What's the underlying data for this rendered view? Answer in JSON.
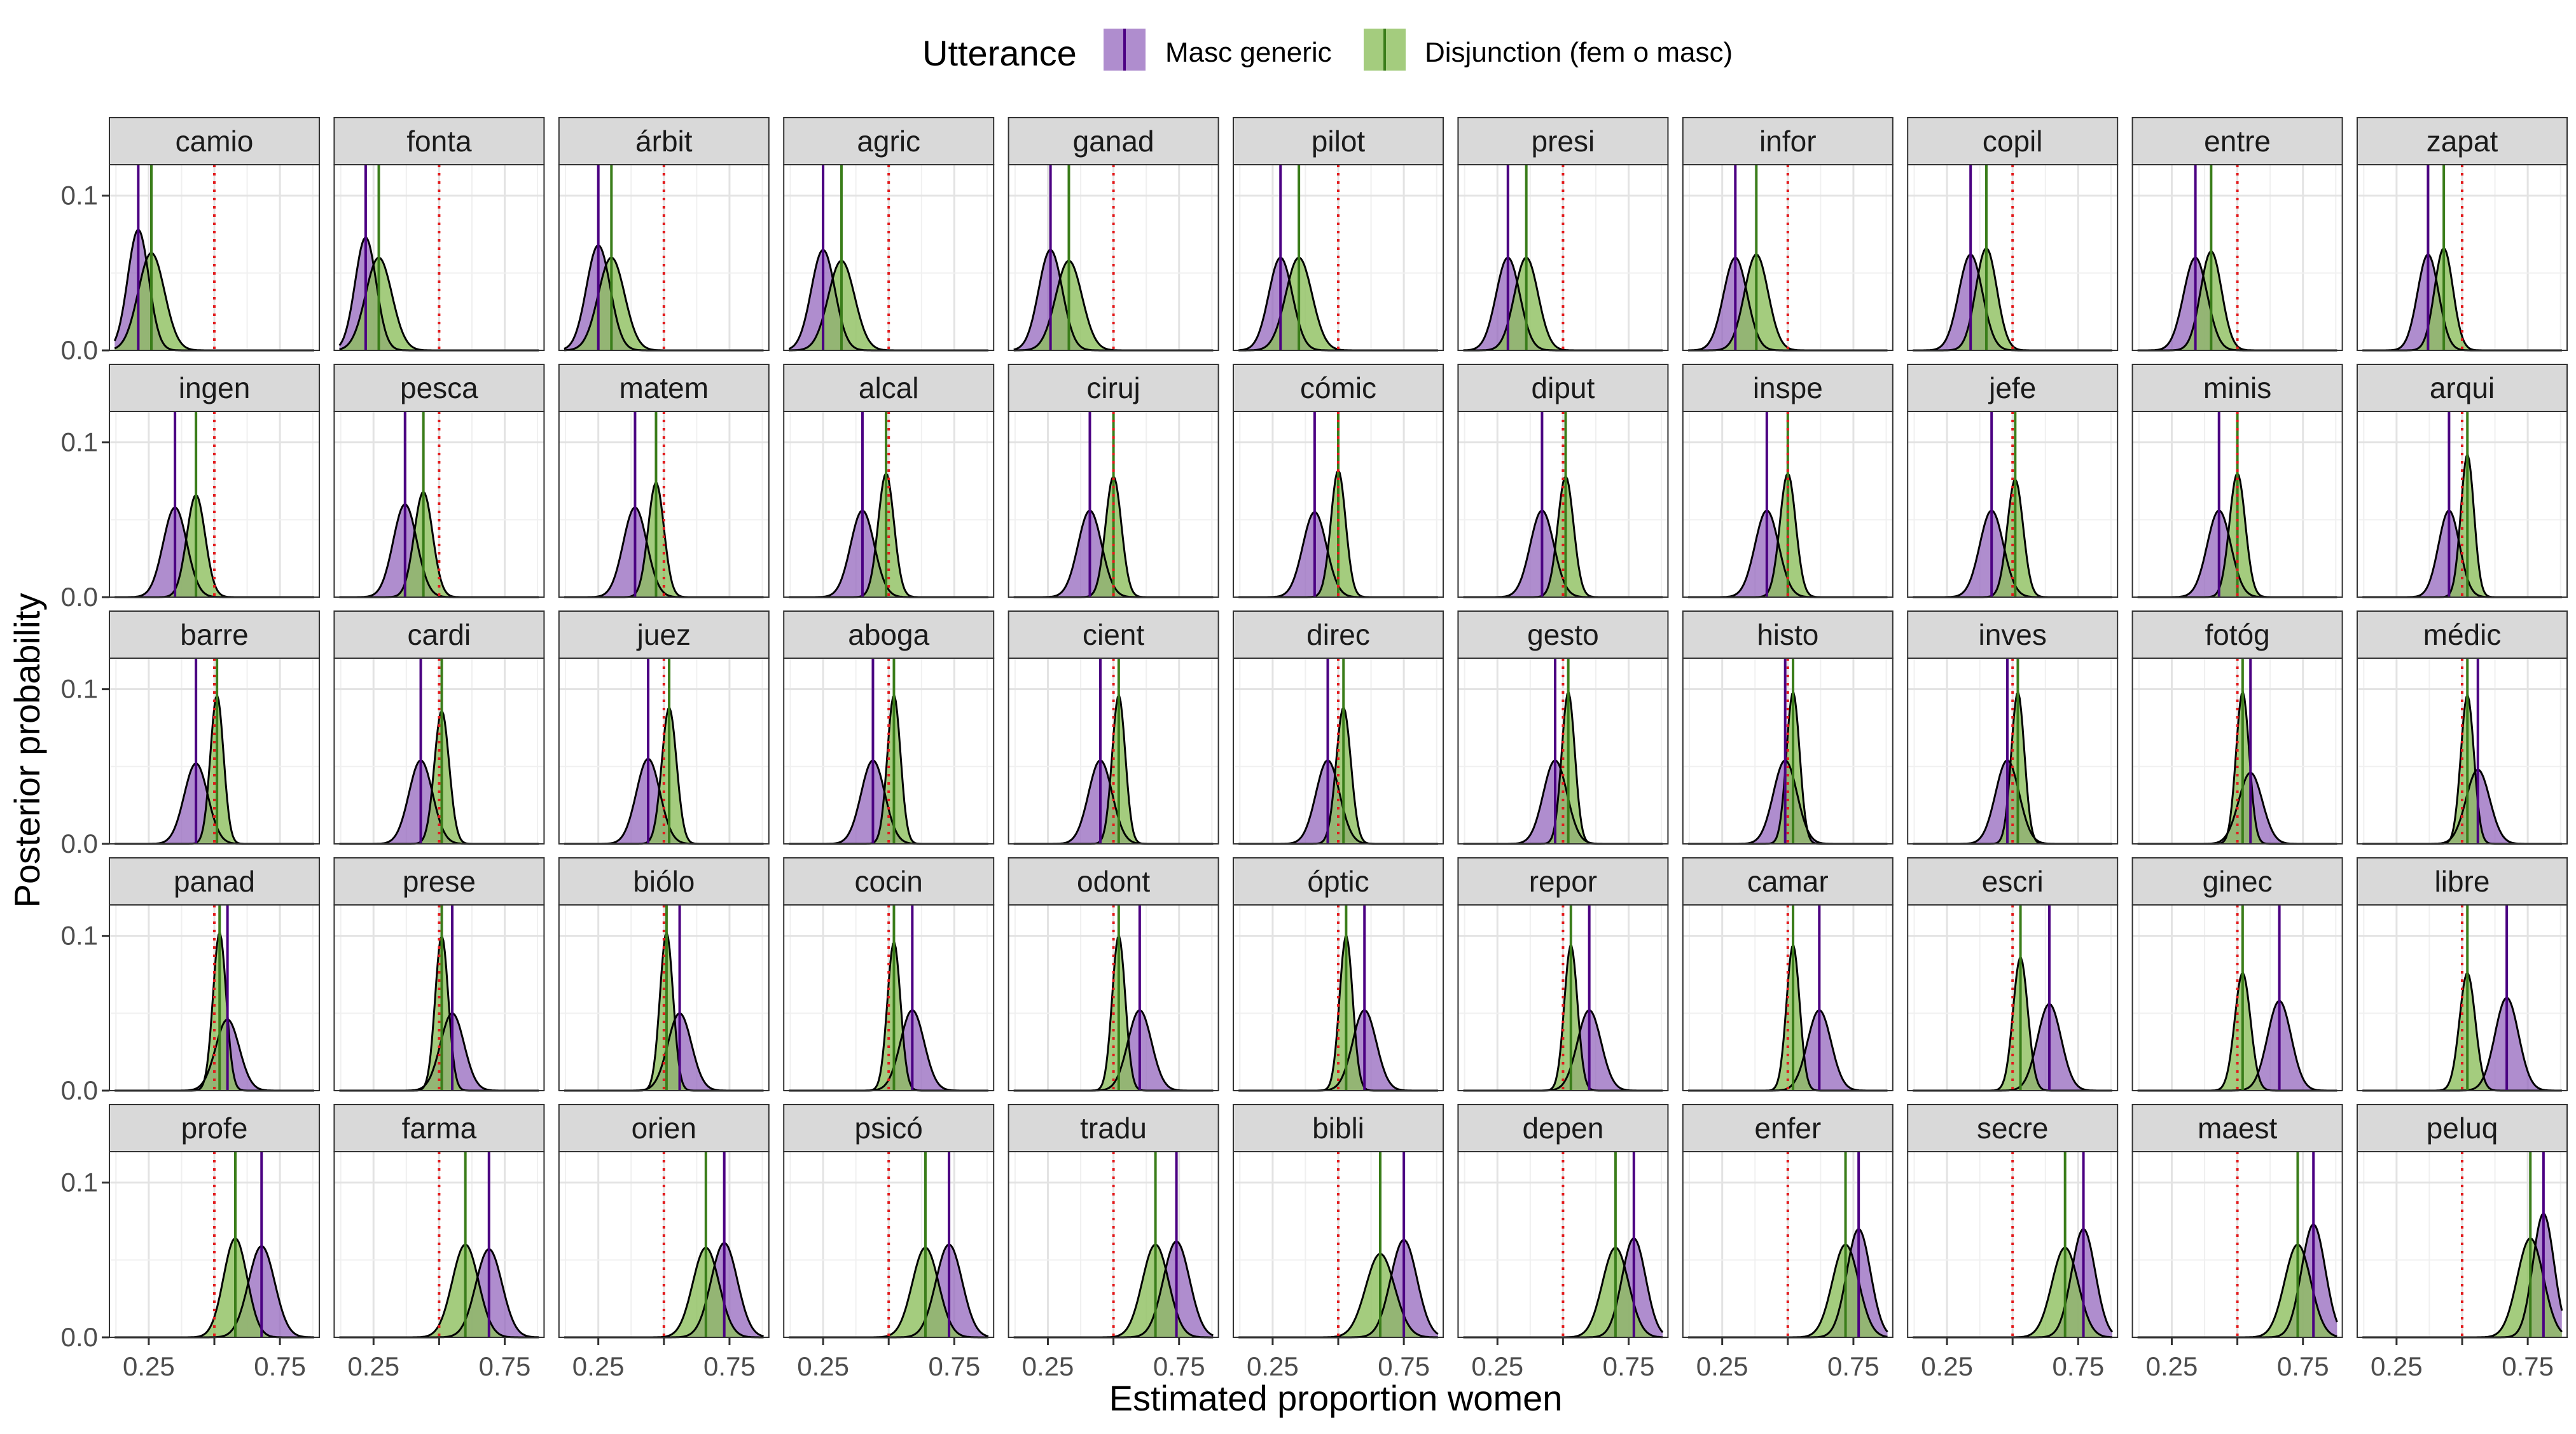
{
  "chart_data": {
    "type": "area",
    "xlabel": "Estimated proportion women",
    "ylabel": "Posterior probability",
    "xlim": [
      0.1,
      0.9
    ],
    "ylim": [
      0,
      0.12
    ],
    "x_ticks": [
      0.25,
      0.5,
      0.75
    ],
    "x_tick_labels": [
      "0.25",
      "0.75"
    ],
    "y_ticks": [
      0.0,
      0.1
    ],
    "y_tick_labels": [
      "0.0",
      "0.1"
    ],
    "grid": true,
    "legend_title": "Utterance",
    "legend_position": "top",
    "series": [
      {
        "name": "Masc generic",
        "color": "#9467bd",
        "line_color": "#4b0082"
      },
      {
        "name": "Disjunction (fem o masc)",
        "color": "#8dbf5e",
        "line_color": "#3a7d1a"
      }
    ],
    "reference_line": {
      "x": 0.5,
      "color": "#e31a1c",
      "style": "dotted"
    },
    "panels": [
      {
        "label": "camio",
        "masc_mean": 0.21,
        "masc_sd": 0.04,
        "masc_peak": 0.078,
        "disj_mean": 0.26,
        "disj_sd": 0.05,
        "disj_peak": 0.063
      },
      {
        "label": "fonta",
        "masc_mean": 0.22,
        "masc_sd": 0.04,
        "masc_peak": 0.073,
        "disj_mean": 0.27,
        "disj_sd": 0.05,
        "disj_peak": 0.06
      },
      {
        "label": "árbit",
        "masc_mean": 0.25,
        "masc_sd": 0.045,
        "masc_peak": 0.068,
        "disj_mean": 0.3,
        "disj_sd": 0.05,
        "disj_peak": 0.06
      },
      {
        "label": "agric",
        "masc_mean": 0.25,
        "masc_sd": 0.045,
        "masc_peak": 0.065,
        "disj_mean": 0.32,
        "disj_sd": 0.05,
        "disj_peak": 0.058
      },
      {
        "label": "ganad",
        "masc_mean": 0.26,
        "masc_sd": 0.045,
        "masc_peak": 0.065,
        "disj_mean": 0.33,
        "disj_sd": 0.05,
        "disj_peak": 0.058
      },
      {
        "label": "pilot",
        "masc_mean": 0.28,
        "masc_sd": 0.045,
        "masc_peak": 0.06,
        "disj_mean": 0.35,
        "disj_sd": 0.05,
        "disj_peak": 0.06
      },
      {
        "label": "presi",
        "masc_mean": 0.29,
        "masc_sd": 0.045,
        "masc_peak": 0.06,
        "disj_mean": 0.36,
        "disj_sd": 0.045,
        "disj_peak": 0.06
      },
      {
        "label": "infor",
        "masc_mean": 0.3,
        "masc_sd": 0.045,
        "masc_peak": 0.06,
        "disj_mean": 0.38,
        "disj_sd": 0.045,
        "disj_peak": 0.062
      },
      {
        "label": "copil",
        "masc_mean": 0.34,
        "masc_sd": 0.045,
        "masc_peak": 0.062,
        "disj_mean": 0.4,
        "disj_sd": 0.04,
        "disj_peak": 0.066
      },
      {
        "label": "entre",
        "masc_mean": 0.34,
        "masc_sd": 0.045,
        "masc_peak": 0.06,
        "disj_mean": 0.4,
        "disj_sd": 0.04,
        "disj_peak": 0.064
      },
      {
        "label": "zapat",
        "masc_mean": 0.37,
        "masc_sd": 0.04,
        "masc_peak": 0.062,
        "disj_mean": 0.43,
        "disj_sd": 0.035,
        "disj_peak": 0.066
      },
      {
        "label": "ingen",
        "masc_mean": 0.35,
        "masc_sd": 0.045,
        "masc_peak": 0.058,
        "disj_mean": 0.43,
        "disj_sd": 0.035,
        "disj_peak": 0.066
      },
      {
        "label": "pesca",
        "masc_mean": 0.37,
        "masc_sd": 0.045,
        "masc_peak": 0.06,
        "disj_mean": 0.44,
        "disj_sd": 0.035,
        "disj_peak": 0.068
      },
      {
        "label": "matem",
        "masc_mean": 0.39,
        "masc_sd": 0.045,
        "masc_peak": 0.058,
        "disj_mean": 0.47,
        "disj_sd": 0.03,
        "disj_peak": 0.074
      },
      {
        "label": "alcal",
        "masc_mean": 0.4,
        "masc_sd": 0.045,
        "masc_peak": 0.056,
        "disj_mean": 0.49,
        "disj_sd": 0.03,
        "disj_peak": 0.08
      },
      {
        "label": "ciruj",
        "masc_mean": 0.41,
        "masc_sd": 0.045,
        "masc_peak": 0.056,
        "disj_mean": 0.5,
        "disj_sd": 0.03,
        "disj_peak": 0.078
      },
      {
        "label": "cómic",
        "masc_mean": 0.41,
        "masc_sd": 0.045,
        "masc_peak": 0.055,
        "disj_mean": 0.5,
        "disj_sd": 0.028,
        "disj_peak": 0.082
      },
      {
        "label": "diput",
        "masc_mean": 0.42,
        "masc_sd": 0.045,
        "masc_peak": 0.056,
        "disj_mean": 0.51,
        "disj_sd": 0.03,
        "disj_peak": 0.078
      },
      {
        "label": "inspe",
        "masc_mean": 0.42,
        "masc_sd": 0.045,
        "masc_peak": 0.056,
        "disj_mean": 0.5,
        "disj_sd": 0.03,
        "disj_peak": 0.08
      },
      {
        "label": "jefe",
        "masc_mean": 0.42,
        "masc_sd": 0.045,
        "masc_peak": 0.056,
        "disj_mean": 0.51,
        "disj_sd": 0.03,
        "disj_peak": 0.076
      },
      {
        "label": "minis",
        "masc_mean": 0.43,
        "masc_sd": 0.045,
        "masc_peak": 0.056,
        "disj_mean": 0.5,
        "disj_sd": 0.03,
        "disj_peak": 0.08
      },
      {
        "label": "arqui",
        "masc_mean": 0.45,
        "masc_sd": 0.04,
        "masc_peak": 0.056,
        "disj_mean": 0.52,
        "disj_sd": 0.025,
        "disj_peak": 0.092
      },
      {
        "label": "barre",
        "masc_mean": 0.43,
        "masc_sd": 0.045,
        "masc_peak": 0.052,
        "disj_mean": 0.51,
        "disj_sd": 0.025,
        "disj_peak": 0.096
      },
      {
        "label": "cardi",
        "masc_mean": 0.43,
        "masc_sd": 0.045,
        "masc_peak": 0.054,
        "disj_mean": 0.51,
        "disj_sd": 0.028,
        "disj_peak": 0.086
      },
      {
        "label": "juez",
        "masc_mean": 0.44,
        "masc_sd": 0.045,
        "masc_peak": 0.055,
        "disj_mean": 0.52,
        "disj_sd": 0.028,
        "disj_peak": 0.088
      },
      {
        "label": "aboga",
        "masc_mean": 0.44,
        "masc_sd": 0.045,
        "masc_peak": 0.054,
        "disj_mean": 0.52,
        "disj_sd": 0.025,
        "disj_peak": 0.096
      },
      {
        "label": "cient",
        "masc_mean": 0.45,
        "masc_sd": 0.045,
        "masc_peak": 0.054,
        "disj_mean": 0.52,
        "disj_sd": 0.025,
        "disj_peak": 0.096
      },
      {
        "label": "direc",
        "masc_mean": 0.46,
        "masc_sd": 0.045,
        "masc_peak": 0.054,
        "disj_mean": 0.52,
        "disj_sd": 0.028,
        "disj_peak": 0.088
      },
      {
        "label": "gesto",
        "masc_mean": 0.47,
        "masc_sd": 0.045,
        "masc_peak": 0.054,
        "disj_mean": 0.52,
        "disj_sd": 0.025,
        "disj_peak": 0.098
      },
      {
        "label": "histo",
        "masc_mean": 0.49,
        "masc_sd": 0.045,
        "masc_peak": 0.054,
        "disj_mean": 0.52,
        "disj_sd": 0.025,
        "disj_peak": 0.098
      },
      {
        "label": "inves",
        "masc_mean": 0.48,
        "masc_sd": 0.045,
        "masc_peak": 0.054,
        "disj_mean": 0.52,
        "disj_sd": 0.025,
        "disj_peak": 0.098
      },
      {
        "label": "fotóg",
        "masc_mean": 0.55,
        "masc_sd": 0.045,
        "masc_peak": 0.046,
        "disj_mean": 0.52,
        "disj_sd": 0.025,
        "disj_peak": 0.098
      },
      {
        "label": "médic",
        "masc_mean": 0.56,
        "masc_sd": 0.045,
        "masc_peak": 0.048,
        "disj_mean": 0.52,
        "disj_sd": 0.025,
        "disj_peak": 0.096
      },
      {
        "label": "panad",
        "masc_mean": 0.55,
        "masc_sd": 0.045,
        "masc_peak": 0.046,
        "disj_mean": 0.52,
        "disj_sd": 0.025,
        "disj_peak": 0.102
      },
      {
        "label": "prese",
        "masc_mean": 0.55,
        "masc_sd": 0.045,
        "masc_peak": 0.05,
        "disj_mean": 0.51,
        "disj_sd": 0.025,
        "disj_peak": 0.1
      },
      {
        "label": "biólo",
        "masc_mean": 0.56,
        "masc_sd": 0.045,
        "masc_peak": 0.05,
        "disj_mean": 0.51,
        "disj_sd": 0.025,
        "disj_peak": 0.102
      },
      {
        "label": "cocin",
        "masc_mean": 0.59,
        "masc_sd": 0.045,
        "masc_peak": 0.052,
        "disj_mean": 0.52,
        "disj_sd": 0.025,
        "disj_peak": 0.096
      },
      {
        "label": "odont",
        "masc_mean": 0.6,
        "masc_sd": 0.045,
        "masc_peak": 0.052,
        "disj_mean": 0.52,
        "disj_sd": 0.025,
        "disj_peak": 0.1
      },
      {
        "label": "óptic",
        "masc_mean": 0.6,
        "masc_sd": 0.045,
        "masc_peak": 0.052,
        "disj_mean": 0.53,
        "disj_sd": 0.025,
        "disj_peak": 0.1
      },
      {
        "label": "repor",
        "masc_mean": 0.6,
        "masc_sd": 0.045,
        "masc_peak": 0.052,
        "disj_mean": 0.53,
        "disj_sd": 0.025,
        "disj_peak": 0.094
      },
      {
        "label": "camar",
        "masc_mean": 0.62,
        "masc_sd": 0.045,
        "masc_peak": 0.052,
        "disj_mean": 0.52,
        "disj_sd": 0.025,
        "disj_peak": 0.094
      },
      {
        "label": "escri",
        "masc_mean": 0.64,
        "masc_sd": 0.045,
        "masc_peak": 0.056,
        "disj_mean": 0.53,
        "disj_sd": 0.028,
        "disj_peak": 0.086
      },
      {
        "label": "ginec",
        "masc_mean": 0.66,
        "masc_sd": 0.045,
        "masc_peak": 0.058,
        "disj_mean": 0.52,
        "disj_sd": 0.03,
        "disj_peak": 0.076
      },
      {
        "label": "libre",
        "masc_mean": 0.67,
        "masc_sd": 0.045,
        "masc_peak": 0.06,
        "disj_mean": 0.52,
        "disj_sd": 0.03,
        "disj_peak": 0.076
      },
      {
        "label": "profe",
        "masc_mean": 0.68,
        "masc_sd": 0.05,
        "masc_peak": 0.059,
        "disj_mean": 0.58,
        "disj_sd": 0.045,
        "disj_peak": 0.064
      },
      {
        "label": "farma",
        "masc_mean": 0.69,
        "masc_sd": 0.05,
        "masc_peak": 0.057,
        "disj_mean": 0.6,
        "disj_sd": 0.05,
        "disj_peak": 0.06
      },
      {
        "label": "orien",
        "masc_mean": 0.73,
        "masc_sd": 0.05,
        "masc_peak": 0.061,
        "disj_mean": 0.66,
        "disj_sd": 0.05,
        "disj_peak": 0.058
      },
      {
        "label": "psicó",
        "masc_mean": 0.73,
        "masc_sd": 0.05,
        "masc_peak": 0.06,
        "disj_mean": 0.64,
        "disj_sd": 0.05,
        "disj_peak": 0.058
      },
      {
        "label": "tradu",
        "masc_mean": 0.74,
        "masc_sd": 0.05,
        "masc_peak": 0.062,
        "disj_mean": 0.66,
        "disj_sd": 0.05,
        "disj_peak": 0.06
      },
      {
        "label": "bibli",
        "masc_mean": 0.75,
        "masc_sd": 0.05,
        "masc_peak": 0.063,
        "disj_mean": 0.66,
        "disj_sd": 0.055,
        "disj_peak": 0.054
      },
      {
        "label": "depen",
        "masc_mean": 0.77,
        "masc_sd": 0.045,
        "masc_peak": 0.064,
        "disj_mean": 0.7,
        "disj_sd": 0.05,
        "disj_peak": 0.058
      },
      {
        "label": "enfer",
        "masc_mean": 0.77,
        "masc_sd": 0.045,
        "masc_peak": 0.07,
        "disj_mean": 0.72,
        "disj_sd": 0.05,
        "disj_peak": 0.06
      },
      {
        "label": "secre",
        "masc_mean": 0.77,
        "masc_sd": 0.045,
        "masc_peak": 0.07,
        "disj_mean": 0.7,
        "disj_sd": 0.05,
        "disj_peak": 0.058
      },
      {
        "label": "maest",
        "masc_mean": 0.79,
        "masc_sd": 0.045,
        "masc_peak": 0.073,
        "disj_mean": 0.73,
        "disj_sd": 0.05,
        "disj_peak": 0.06
      },
      {
        "label": "peluq",
        "masc_mean": 0.81,
        "masc_sd": 0.04,
        "masc_peak": 0.08,
        "disj_mean": 0.76,
        "disj_sd": 0.05,
        "disj_peak": 0.064
      }
    ]
  }
}
